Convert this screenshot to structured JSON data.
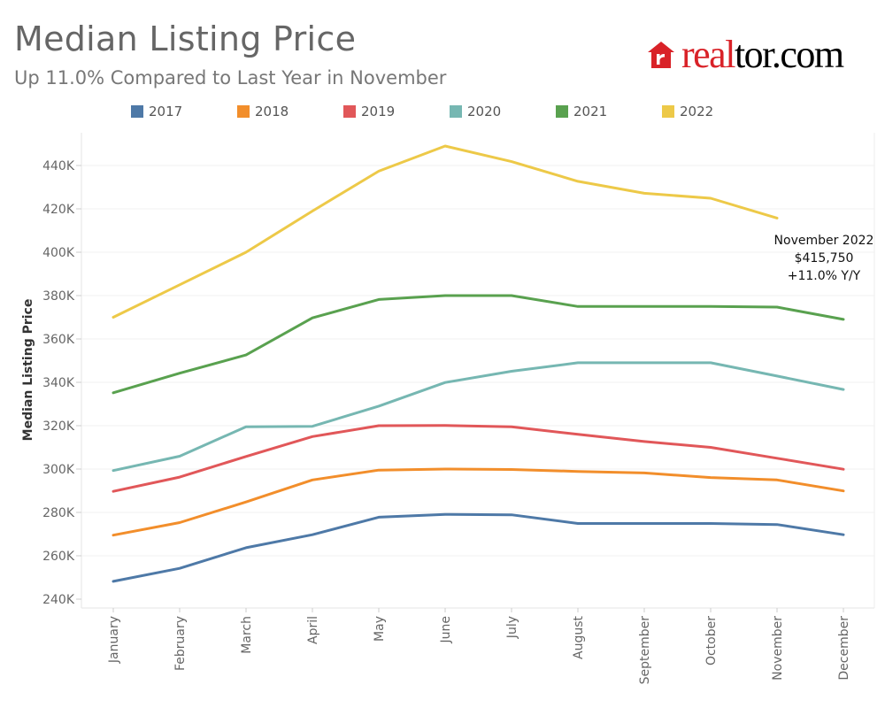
{
  "header": {
    "title": "Median Listing Price",
    "subtitle": "Up 11.0% Compared to Last Year in November"
  },
  "logo": {
    "part1": "real",
    "part2": "tor.com",
    "icon": "realtor-r-house-icon",
    "color": "#d92228"
  },
  "chart_data": {
    "type": "line",
    "ylabel": "Median Listing Price",
    "xlabel": "",
    "ylim": [
      240000,
      450000
    ],
    "yticks": [
      240000,
      260000,
      280000,
      300000,
      320000,
      340000,
      360000,
      380000,
      400000,
      420000,
      440000
    ],
    "ytick_labels": [
      "240K",
      "260K",
      "280K",
      "300K",
      "320K",
      "340K",
      "360K",
      "380K",
      "400K",
      "420K",
      "440K"
    ],
    "categories": [
      "January",
      "February",
      "March",
      "April",
      "May",
      "June",
      "July",
      "August",
      "September",
      "October",
      "November",
      "December"
    ],
    "legend_position": "top",
    "grid": true,
    "series": [
      {
        "name": "2017",
        "color": "#4e79a7",
        "values": [
          248200,
          254200,
          263700,
          269700,
          277800,
          279100,
          278900,
          274900,
          274900,
          274900,
          274400,
          269700
        ]
      },
      {
        "name": "2018",
        "color": "#f28e2b",
        "values": [
          269500,
          275300,
          284800,
          295000,
          299500,
          300000,
          299800,
          298900,
          298200,
          296100,
          295000,
          289900
        ]
      },
      {
        "name": "2019",
        "color": "#e15759",
        "values": [
          289700,
          296300,
          305800,
          315000,
          320000,
          320100,
          319500,
          316000,
          312700,
          310000,
          305000,
          299900
        ]
      },
      {
        "name": "2020",
        "color": "#76b7b2",
        "values": [
          299300,
          305900,
          319500,
          319700,
          329000,
          339900,
          345100,
          349000,
          349000,
          349000,
          342900,
          336700
        ]
      },
      {
        "name": "2021",
        "color": "#59a14f",
        "values": [
          335200,
          344200,
          352600,
          369700,
          378200,
          380000,
          380000,
          375000,
          375000,
          375000,
          374700,
          369000
        ]
      },
      {
        "name": "2022",
        "color": "#edc948",
        "values": [
          370000,
          385000,
          400000,
          419000,
          437400,
          449000,
          441800,
          432700,
          427200,
          424900,
          415750,
          null
        ]
      }
    ],
    "annotation": {
      "line1": "November 2022",
      "line2": "$415,750",
      "line3": "+11.0% Y/Y"
    }
  }
}
